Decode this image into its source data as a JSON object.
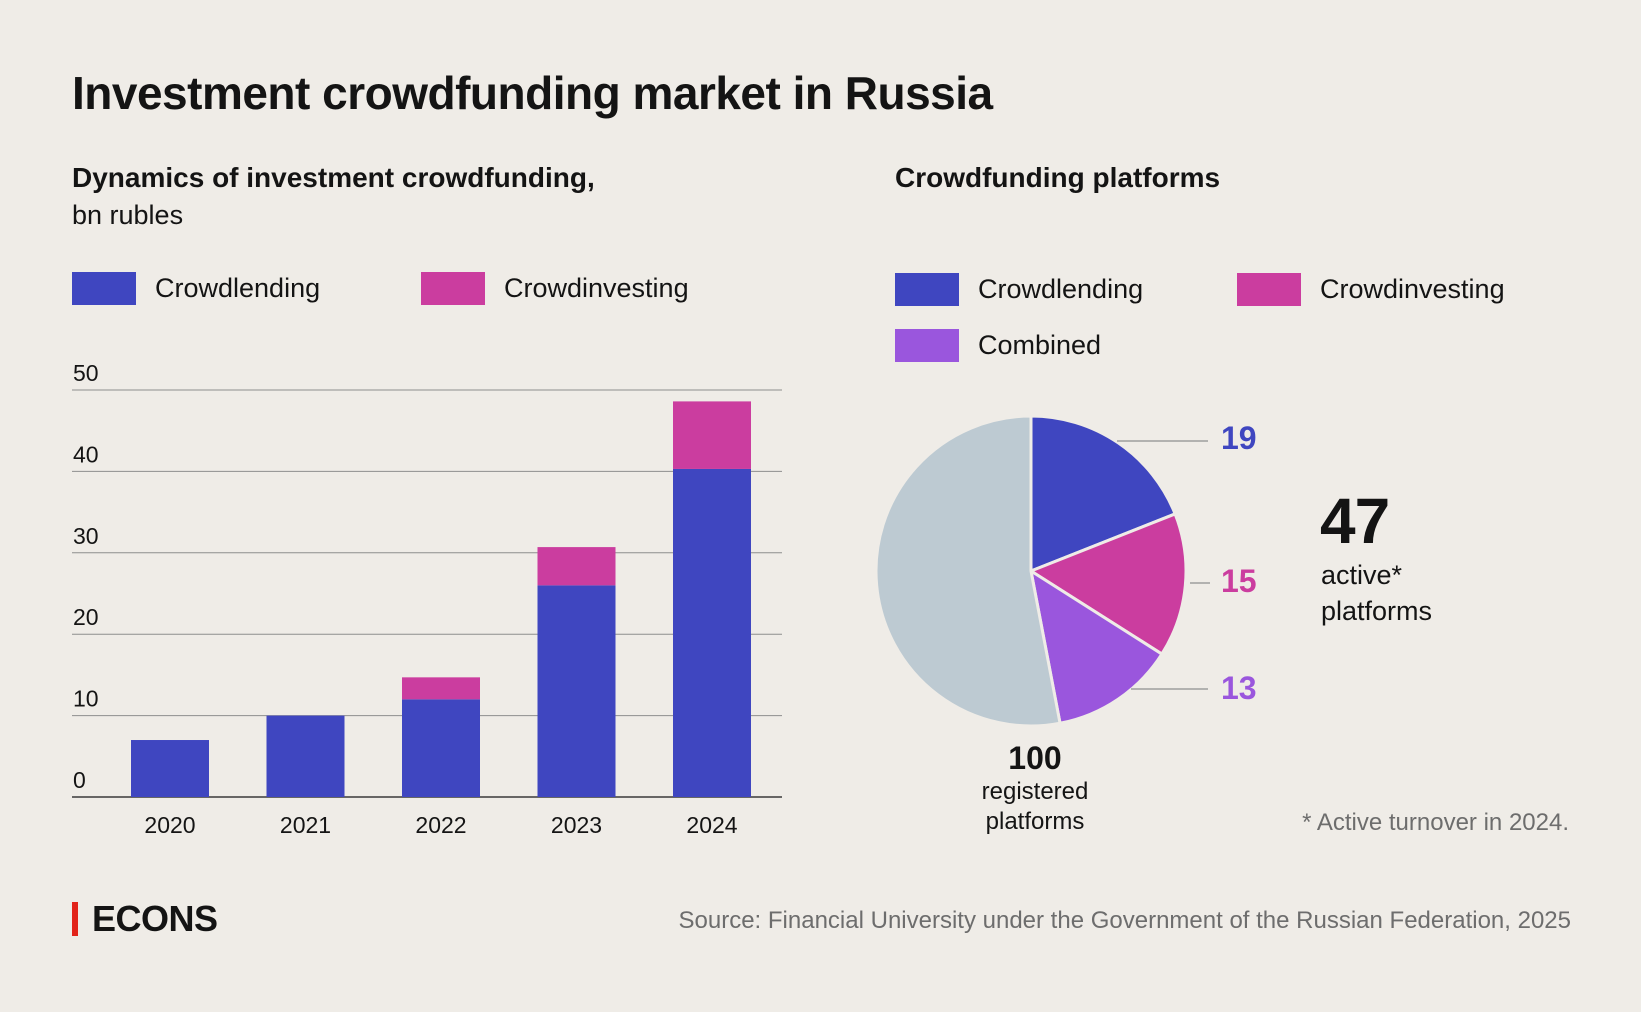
{
  "title": "Investment crowdfunding market in Russia",
  "brand": "ECONS",
  "source": "Source: Financial University under the Government of the Russian Federation, 2025",
  "footnote": "* Active turnover in 2024.",
  "colors": {
    "background": "#efece7",
    "crowdlending": "#3f46c0",
    "crowdinvesting": "#cb3d9f",
    "combined": "#9a56dd",
    "inactive": "#bdcad2",
    "brand_accent": "#e2231a"
  },
  "chart_data": [
    {
      "type": "bar",
      "stacked": true,
      "title": "Dynamics of investment crowdfunding,",
      "subtitle": "bn rubles",
      "categories": [
        "2020",
        "2021",
        "2022",
        "2023",
        "2024"
      ],
      "series": [
        {
          "name": "Crowdlending",
          "values": [
            7,
            10,
            12,
            26,
            40.3
          ]
        },
        {
          "name": "Crowdinvesting",
          "values": [
            0,
            0,
            2.7,
            4.7,
            8.3
          ]
        }
      ],
      "ylim": [
        0,
        50
      ],
      "yticks": [
        "0",
        "10",
        "20",
        "30",
        "40",
        "50"
      ],
      "grid": true,
      "legend": "top-left"
    },
    {
      "type": "pie",
      "title": "Crowdfunding platforms",
      "legend_order": [
        "Crowdlending",
        "Crowdinvesting",
        "Combined"
      ],
      "slices": [
        {
          "name": "Crowdlending",
          "value": 19,
          "label": "19"
        },
        {
          "name": "Crowdinvesting",
          "value": 15,
          "label": "15"
        },
        {
          "name": "Combined",
          "value": 13,
          "label": "13"
        },
        {
          "name": "",
          "value": 53,
          "label": ""
        }
      ],
      "total": {
        "value": "100",
        "label_line1": "registered",
        "label_line2": "platforms"
      },
      "active": {
        "value": "47",
        "label_line1": "active*",
        "label_line2": "platforms"
      },
      "legend": "top"
    }
  ]
}
